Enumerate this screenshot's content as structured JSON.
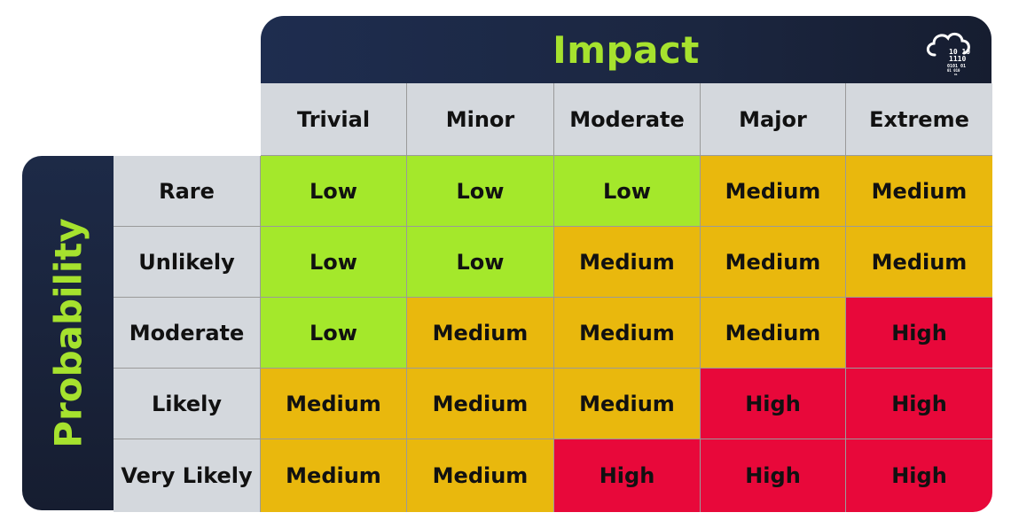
{
  "impact_title": "Impact",
  "probability_title": "Probability",
  "impact_levels": [
    "Trivial",
    "Minor",
    "Moderate",
    "Major",
    "Extreme"
  ],
  "probability_levels": [
    "Rare",
    "Unlikely",
    "Moderate",
    "Likely",
    "Very Likely"
  ],
  "matrix": [
    [
      "Low",
      "Low",
      "Low",
      "Medium",
      "Medium"
    ],
    [
      "Low",
      "Low",
      "Medium",
      "Medium",
      "Medium"
    ],
    [
      "Low",
      "Medium",
      "Medium",
      "Medium",
      "High"
    ],
    [
      "Medium",
      "Medium",
      "Medium",
      "High",
      "High"
    ],
    [
      "Medium",
      "Medium",
      "High",
      "High",
      "High"
    ]
  ],
  "logo": {
    "icon": "cloud-binary-icon",
    "lines": [
      "10  10",
      "1110",
      "0101  01",
      "01  010",
      "01"
    ]
  },
  "colors": {
    "Low": "#a4e82b",
    "Medium": "#e9b80d",
    "High": "#e8083a",
    "header_bg": "#1b2640",
    "title_text": "#a6e22e",
    "label_bg": "#d4d8dd"
  }
}
